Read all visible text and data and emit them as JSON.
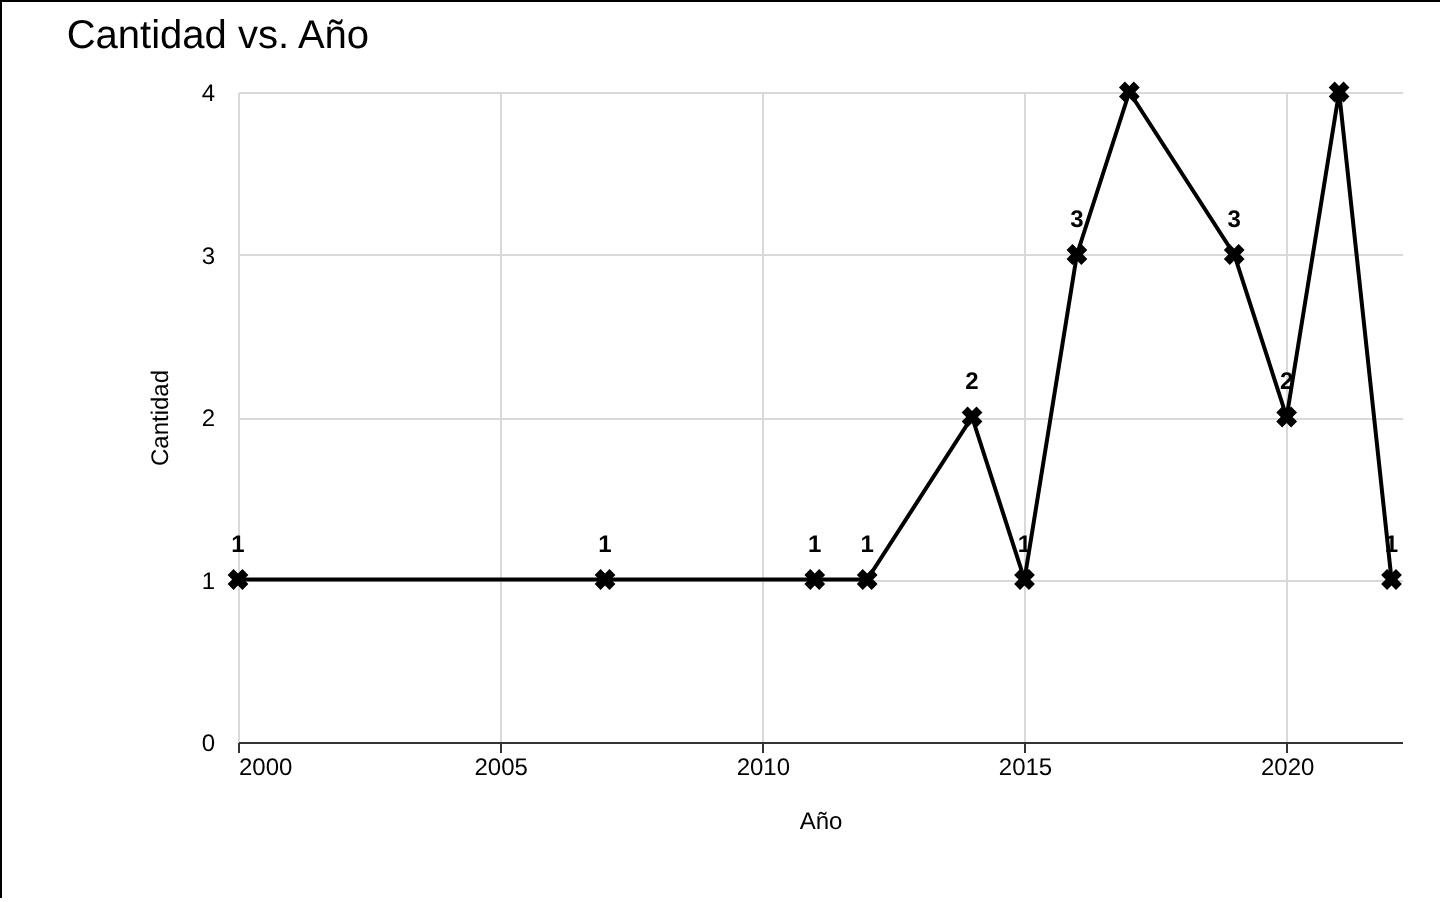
{
  "chart_data": {
    "type": "line",
    "title": "Cantidad vs. Año",
    "xlabel": "Año",
    "ylabel": "Cantidad",
    "x": [
      2000,
      2007,
      2011,
      2012,
      2014,
      2015,
      2016,
      2017,
      2019,
      2020,
      2021,
      2022
    ],
    "series": [
      {
        "color": "#000000",
        "values": [
          1,
          1,
          1,
          1,
          2,
          1,
          3,
          4,
          3,
          2,
          4,
          1
        ],
        "value_labels": [
          "1",
          "1",
          "1",
          "1",
          "2",
          "1",
          "3",
          null,
          "3",
          "2",
          null,
          "1"
        ]
      }
    ],
    "xlim": [
      2000,
      2022.2
    ],
    "xticks": [
      2000,
      2005,
      2010,
      2015,
      2020
    ],
    "ylim": [
      0,
      4
    ],
    "yticks": [
      0,
      1,
      2,
      3,
      4
    ],
    "grid": true,
    "marker": "cross",
    "line_style": "solid"
  }
}
